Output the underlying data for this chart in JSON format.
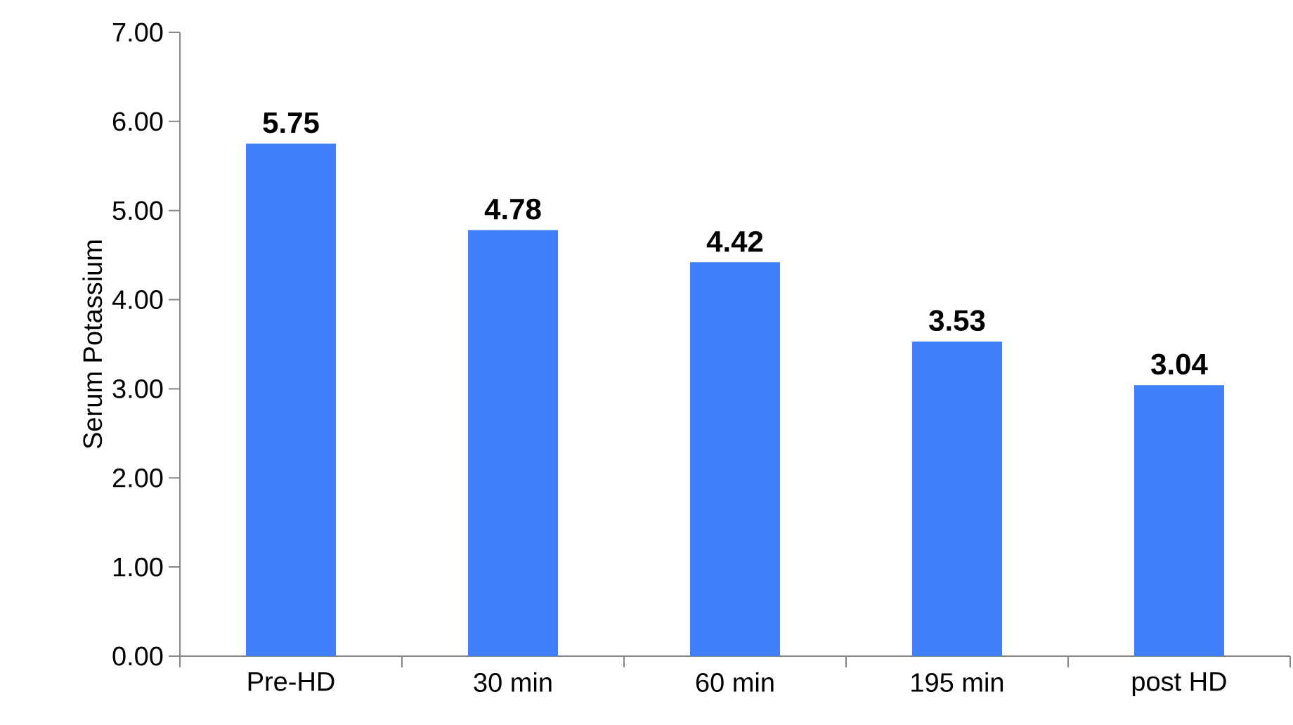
{
  "chart_data": {
    "type": "bar",
    "ylabel": "Serum  Potassium",
    "categories": [
      "Pre-HD",
      "30 min",
      "60 min",
      "195 min",
      "post HD"
    ],
    "values": [
      5.75,
      4.78,
      4.42,
      3.53,
      3.04
    ],
    "value_labels": [
      "5.75",
      "4.78",
      "4.42",
      "3.53",
      "3.04"
    ],
    "color": "#4080fa",
    "ylim": [
      0,
      7
    ],
    "yticks": [
      {
        "value": 0,
        "label": "0.00"
      },
      {
        "value": 1,
        "label": "1.00"
      },
      {
        "value": 2,
        "label": "2.00"
      },
      {
        "value": 3,
        "label": "3.00"
      },
      {
        "value": 4,
        "label": "4.00"
      },
      {
        "value": 5,
        "label": "5.00"
      },
      {
        "value": 6,
        "label": "6.00"
      },
      {
        "value": 7,
        "label": "7.00"
      }
    ],
    "grid": false
  }
}
